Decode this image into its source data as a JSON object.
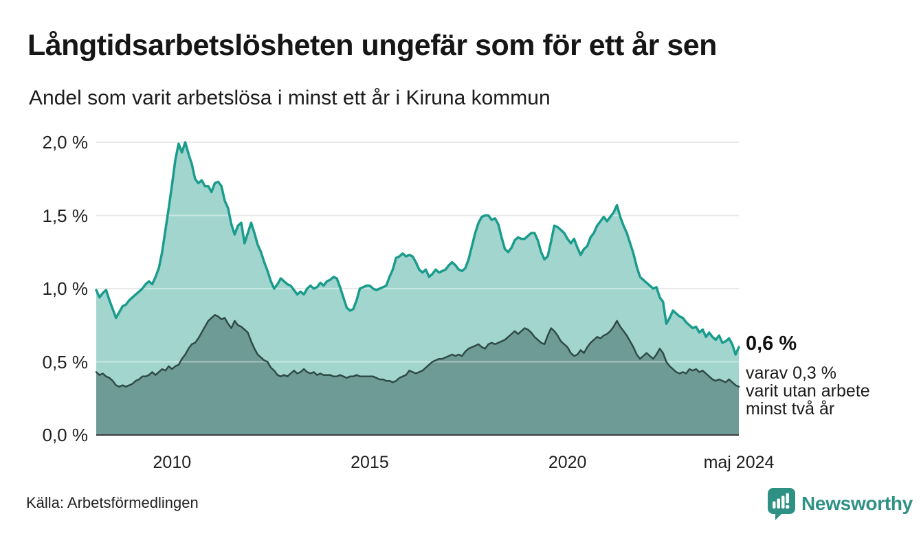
{
  "header": {
    "title": "Långtidsarbetslösheten ungefär som för ett år sen",
    "subtitle": "Andel som varit arbetslösa i minst ett år i Kiruna kommun"
  },
  "chart_data": {
    "type": "area",
    "title": "Långtidsarbetslösheten ungefär som för ett år sen",
    "subtitle": "Andel som varit arbetslösa i minst ett år i Kiruna kommun",
    "frequency": "monthly",
    "x_start": "2008-02",
    "x_end": "2024-05",
    "x_tick_labels": [
      "2010",
      "2015",
      "2020",
      "maj 2024"
    ],
    "y_tick_labels": [
      "2,0 %",
      "1,5 %",
      "1,0 %",
      "0,5 %",
      "0,0 %"
    ],
    "ylim": [
      0,
      2.0
    ],
    "grid": true,
    "legend_position": "none",
    "colors": {
      "line_1yr": "#1a9c8c",
      "fill_1yr": "#a3d5cf",
      "line_2yr": "#2e4b47",
      "fill_2yr": "#6f9b96",
      "gridline": "#d9d9d9",
      "baseline": "#3c3c3c",
      "brand_teal": "#2e9184"
    },
    "series": [
      {
        "name": "Andel arbetslösa minst ett år",
        "values": [
          0.99,
          0.94,
          0.97,
          0.99,
          0.92,
          0.86,
          0.8,
          0.84,
          0.88,
          0.89,
          0.92,
          0.94,
          0.96,
          0.98,
          1.0,
          1.03,
          1.05,
          1.03,
          1.08,
          1.14,
          1.25,
          1.4,
          1.55,
          1.71,
          1.88,
          1.99,
          1.93,
          2.0,
          1.92,
          1.85,
          1.75,
          1.72,
          1.74,
          1.7,
          1.7,
          1.66,
          1.72,
          1.73,
          1.7,
          1.6,
          1.55,
          1.44,
          1.37,
          1.43,
          1.45,
          1.31,
          1.38,
          1.45,
          1.38,
          1.3,
          1.25,
          1.18,
          1.12,
          1.05,
          1.0,
          1.03,
          1.07,
          1.05,
          1.03,
          1.02,
          0.99,
          0.96,
          0.98,
          0.96,
          1.0,
          1.02,
          1.0,
          1.01,
          1.04,
          1.02,
          1.05,
          1.06,
          1.08,
          1.07,
          1.01,
          0.94,
          0.87,
          0.85,
          0.86,
          0.92,
          1.0,
          1.01,
          1.02,
          1.02,
          1.0,
          0.99,
          1.0,
          1.01,
          1.02,
          1.08,
          1.13,
          1.21,
          1.22,
          1.24,
          1.22,
          1.23,
          1.22,
          1.18,
          1.13,
          1.11,
          1.13,
          1.08,
          1.1,
          1.13,
          1.11,
          1.12,
          1.13,
          1.16,
          1.18,
          1.16,
          1.13,
          1.12,
          1.14,
          1.2,
          1.29,
          1.38,
          1.45,
          1.49,
          1.5,
          1.5,
          1.47,
          1.48,
          1.44,
          1.35,
          1.27,
          1.25,
          1.28,
          1.33,
          1.35,
          1.34,
          1.34,
          1.36,
          1.38,
          1.38,
          1.33,
          1.25,
          1.2,
          1.22,
          1.32,
          1.43,
          1.42,
          1.4,
          1.38,
          1.34,
          1.31,
          1.34,
          1.28,
          1.23,
          1.27,
          1.29,
          1.35,
          1.38,
          1.43,
          1.46,
          1.49,
          1.46,
          1.49,
          1.52,
          1.57,
          1.49,
          1.43,
          1.38,
          1.31,
          1.24,
          1.15,
          1.08,
          1.06,
          1.04,
          1.02,
          1.0,
          1.01,
          0.94,
          0.91,
          0.76,
          0.8,
          0.85,
          0.83,
          0.81,
          0.8,
          0.77,
          0.75,
          0.73,
          0.74,
          0.7,
          0.72,
          0.67,
          0.7,
          0.67,
          0.65,
          0.68,
          0.63,
          0.64,
          0.66,
          0.62,
          0.55,
          0.6
        ]
      },
      {
        "name": "Andel arbetslösa minst två år",
        "values": [
          0.43,
          0.41,
          0.42,
          0.4,
          0.39,
          0.37,
          0.34,
          0.33,
          0.34,
          0.33,
          0.34,
          0.35,
          0.37,
          0.38,
          0.4,
          0.4,
          0.41,
          0.43,
          0.41,
          0.43,
          0.45,
          0.44,
          0.47,
          0.45,
          0.47,
          0.48,
          0.52,
          0.55,
          0.59,
          0.62,
          0.63,
          0.66,
          0.7,
          0.74,
          0.78,
          0.8,
          0.82,
          0.81,
          0.79,
          0.8,
          0.76,
          0.73,
          0.78,
          0.75,
          0.74,
          0.72,
          0.7,
          0.64,
          0.59,
          0.55,
          0.53,
          0.51,
          0.5,
          0.46,
          0.44,
          0.41,
          0.4,
          0.41,
          0.4,
          0.42,
          0.44,
          0.42,
          0.43,
          0.45,
          0.43,
          0.42,
          0.43,
          0.41,
          0.42,
          0.41,
          0.41,
          0.41,
          0.4,
          0.4,
          0.41,
          0.4,
          0.39,
          0.4,
          0.4,
          0.41,
          0.4,
          0.4,
          0.4,
          0.4,
          0.4,
          0.39,
          0.38,
          0.38,
          0.37,
          0.37,
          0.36,
          0.37,
          0.39,
          0.4,
          0.41,
          0.44,
          0.43,
          0.42,
          0.43,
          0.44,
          0.46,
          0.48,
          0.5,
          0.51,
          0.52,
          0.52,
          0.53,
          0.54,
          0.55,
          0.54,
          0.55,
          0.54,
          0.57,
          0.59,
          0.6,
          0.61,
          0.62,
          0.6,
          0.59,
          0.62,
          0.63,
          0.62,
          0.63,
          0.64,
          0.65,
          0.67,
          0.69,
          0.71,
          0.69,
          0.71,
          0.73,
          0.72,
          0.7,
          0.67,
          0.65,
          0.63,
          0.62,
          0.68,
          0.73,
          0.71,
          0.68,
          0.64,
          0.62,
          0.6,
          0.56,
          0.54,
          0.55,
          0.58,
          0.56,
          0.6,
          0.63,
          0.65,
          0.67,
          0.66,
          0.68,
          0.69,
          0.71,
          0.74,
          0.78,
          0.74,
          0.71,
          0.68,
          0.64,
          0.6,
          0.55,
          0.52,
          0.54,
          0.56,
          0.54,
          0.52,
          0.55,
          0.59,
          0.56,
          0.5,
          0.47,
          0.45,
          0.43,
          0.42,
          0.43,
          0.42,
          0.45,
          0.44,
          0.45,
          0.43,
          0.44,
          0.42,
          0.4,
          0.38,
          0.37,
          0.38,
          0.37,
          0.36,
          0.38,
          0.36,
          0.34,
          0.33
        ]
      }
    ],
    "annotation": {
      "value_label": "0,6 %",
      "detail_lines": [
        "varav 0,3 %",
        "varit utan arbete",
        "minst två år"
      ]
    }
  },
  "footer": {
    "source": "Källa: Arbetsförmedlingen",
    "brand": "Newsworthy"
  }
}
